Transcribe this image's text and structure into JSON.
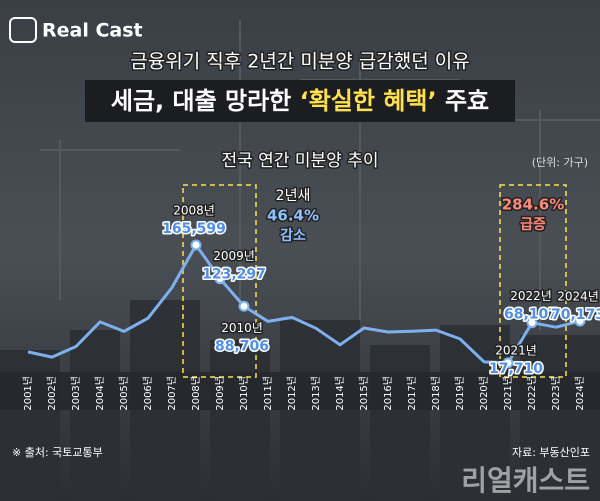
{
  "brand": "Real Cast",
  "headline_top": "금융위기 직후 2년간 미분양 급감했던 이유",
  "headline_main": [
    "세금, 대출 망라한",
    "‘확실한 혜택’",
    "주효"
  ],
  "chart_data": {
    "type": "line",
    "title": "전국 연간 미분양 추이",
    "unit": "(단위: 가구)",
    "categories": [
      "2001년",
      "2002년",
      "2003년",
      "2004년",
      "2005년",
      "2006년",
      "2007년",
      "2008년",
      "2009년",
      "2010년",
      "2011년",
      "2012년",
      "2013년",
      "2014년",
      "2015년",
      "2016년",
      "2017년",
      "2018년",
      "2019년",
      "2020년",
      "2021년",
      "2022년",
      "2023년",
      "2024년"
    ],
    "values": [
      31512,
      24923,
      38261,
      69133,
      57215,
      73772,
      112254,
      165599,
      123297,
      88706,
      69807,
      74835,
      61091,
      40379,
      61512,
      56413,
      57330,
      58838,
      47797,
      19005,
      17710,
      68107,
      62489,
      70173
    ],
    "value_labels": [
      null,
      null,
      null,
      null,
      null,
      null,
      null,
      "165,599",
      "123,297",
      "88,706",
      null,
      null,
      null,
      null,
      null,
      null,
      null,
      null,
      null,
      null,
      "17,710",
      "68,107",
      null,
      "70,173"
    ],
    "color": "#7fb0ee",
    "annotations": [
      {
        "lines": [
          "2년새",
          "46.4%",
          "감소"
        ]
      },
      {
        "lines": [
          "284.6%",
          "급증"
        ]
      }
    ]
  },
  "source": "※ 출처: 국토교통부",
  "credit": "자료: 부동산인포",
  "watermark": "리얼캐스트"
}
